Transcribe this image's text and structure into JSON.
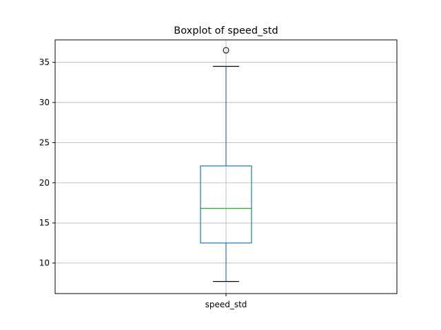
{
  "chart_data": {
    "type": "box",
    "title": "Boxplot of speed_std",
    "categories": [
      "speed_std"
    ],
    "boxes": [
      {
        "name": "speed_std",
        "whisker_low": 7.7,
        "q1": 12.5,
        "median": 16.8,
        "q3": 22.1,
        "whisker_high": 34.5,
        "outliers": [
          36.5
        ]
      }
    ],
    "yticks": [
      10,
      15,
      20,
      25,
      30,
      35
    ],
    "ylim": [
      6.2,
      37.8
    ],
    "grid": true,
    "colors": {
      "box": "#1f77b4",
      "median": "#2ca02c",
      "cap": "#000000",
      "grid": "#b0b0b0",
      "axis": "#000000"
    }
  }
}
